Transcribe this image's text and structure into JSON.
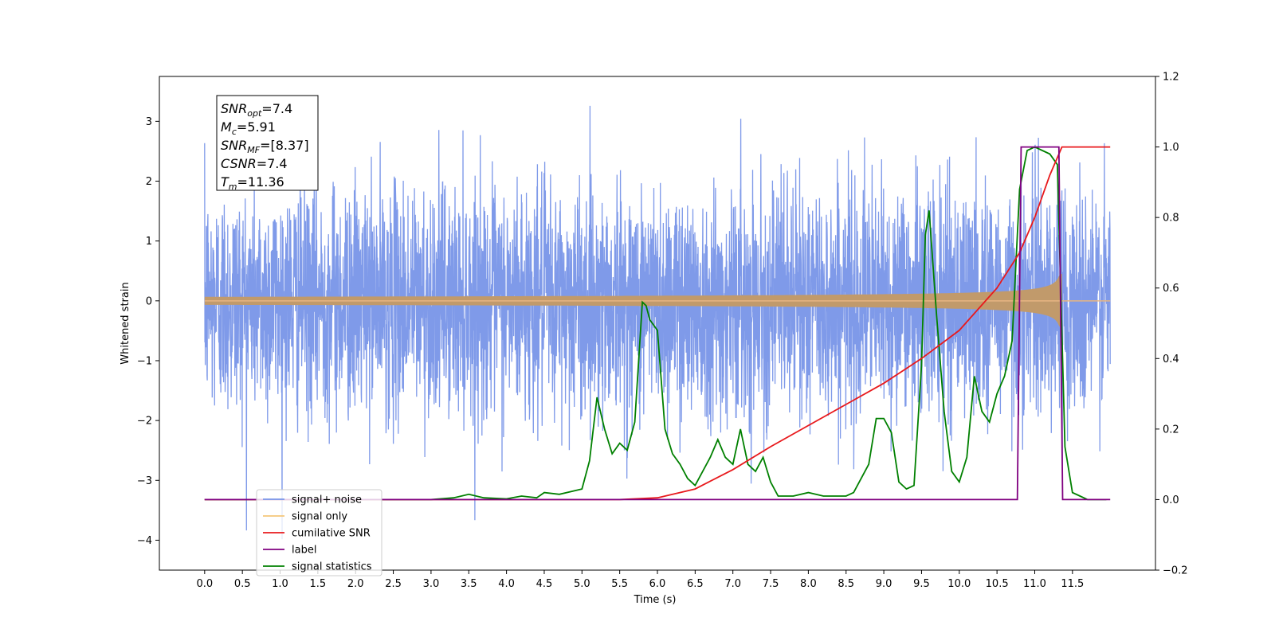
{
  "chart_data": {
    "type": "line",
    "title": "",
    "xlabel": "Time (s)",
    "ylabel": "Whitened strain",
    "xlim": [
      -0.6,
      12.6
    ],
    "ylim": [
      -4.5,
      3.75
    ],
    "y2lim": [
      -0.2,
      1.2
    ],
    "x_ticks": [
      "0.0",
      "0.5",
      "1.0",
      "1.5",
      "2.0",
      "2.5",
      "3.0",
      "3.5",
      "4.0",
      "4.5",
      "5.0",
      "5.5",
      "6.0",
      "6.5",
      "7.0",
      "7.5",
      "8.0",
      "8.5",
      "9.0",
      "9.5",
      "10.0",
      "10.5",
      "11.0",
      "11.5"
    ],
    "y_ticks": [
      "3",
      "2",
      "1",
      "0",
      "−1",
      "−2",
      "−3",
      "−4"
    ],
    "y2_ticks": [
      "1.2",
      "1.0",
      "0.8",
      "0.6",
      "0.4",
      "0.2",
      "0.0",
      "−0.2"
    ],
    "grid": false,
    "legend_position": "lower-left",
    "annotation": [
      {
        "base": "SNR",
        "sub": "opt",
        "value": "=7.4"
      },
      {
        "base": "M",
        "sub": "c",
        "value": "=5.91"
      },
      {
        "base": "SNR",
        "sub": "MF",
        "value": "=[8.37]"
      },
      {
        "base": "CSNR",
        "sub": "",
        "value": "=7.4"
      },
      {
        "base": "T",
        "sub": "m",
        "value": "=11.36"
      }
    ],
    "series": [
      {
        "name": "signal+ noise",
        "color": "#7895e8",
        "axis": "left",
        "kind": "noise",
        "duration": 12.0,
        "std": 0.95
      },
      {
        "name": "signal only",
        "color": "#e6b482",
        "axis": "left",
        "kind": "chirp",
        "merger_time": 11.36,
        "peak_amplitude": 0.45
      },
      {
        "name": "cumilative SNR",
        "color": "#e8191c",
        "axis": "right",
        "x": [
          0.0,
          5.0,
          5.5,
          6.0,
          6.5,
          7.0,
          7.5,
          8.0,
          8.5,
          9.0,
          9.5,
          10.0,
          10.5,
          10.8,
          11.0,
          11.2,
          11.36,
          12.0
        ],
        "values": [
          0.0,
          0.0,
          0.0,
          0.005,
          0.03,
          0.085,
          0.15,
          0.21,
          0.27,
          0.33,
          0.4,
          0.48,
          0.6,
          0.7,
          0.8,
          0.92,
          1.0,
          1.0
        ]
      },
      {
        "name": "label",
        "color": "#800080",
        "axis": "right",
        "x": [
          0.0,
          10.77,
          10.82,
          11.32,
          11.37,
          12.0
        ],
        "values": [
          0.0,
          0.0,
          1.0,
          1.0,
          0.0,
          0.0
        ]
      },
      {
        "name": "signal statistics",
        "color": "#008000",
        "axis": "right",
        "x": [
          0.0,
          3.0,
          3.3,
          3.5,
          3.7,
          4.0,
          4.2,
          4.4,
          4.5,
          4.7,
          4.9,
          5.0,
          5.1,
          5.2,
          5.3,
          5.4,
          5.5,
          5.6,
          5.7,
          5.8,
          5.85,
          5.9,
          6.0,
          6.1,
          6.2,
          6.3,
          6.4,
          6.5,
          6.7,
          6.8,
          6.9,
          7.0,
          7.1,
          7.2,
          7.3,
          7.4,
          7.5,
          7.6,
          7.8,
          8.0,
          8.2,
          8.5,
          8.6,
          8.8,
          8.9,
          9.0,
          9.1,
          9.2,
          9.3,
          9.4,
          9.5,
          9.55,
          9.6,
          9.7,
          9.8,
          9.9,
          10.0,
          10.1,
          10.2,
          10.3,
          10.4,
          10.5,
          10.6,
          10.7,
          10.8,
          10.9,
          11.0,
          11.1,
          11.2,
          11.3,
          11.4,
          11.5,
          11.6,
          11.7,
          11.9,
          11.95
        ],
        "values": [
          0.0,
          0.0,
          0.005,
          0.015,
          0.005,
          0.002,
          0.01,
          0.005,
          0.02,
          0.015,
          0.025,
          0.03,
          0.11,
          0.29,
          0.2,
          0.13,
          0.16,
          0.14,
          0.22,
          0.56,
          0.55,
          0.51,
          0.48,
          0.2,
          0.13,
          0.1,
          0.06,
          0.04,
          0.12,
          0.17,
          0.12,
          0.1,
          0.2,
          0.1,
          0.08,
          0.12,
          0.05,
          0.01,
          0.01,
          0.02,
          0.01,
          0.01,
          0.02,
          0.1,
          0.23,
          0.23,
          0.19,
          0.05,
          0.03,
          0.04,
          0.38,
          0.75,
          0.82,
          0.52,
          0.25,
          0.08,
          0.05,
          0.12,
          0.35,
          0.25,
          0.22,
          0.3,
          0.35,
          0.45,
          0.88,
          0.99,
          1.0,
          0.99,
          0.98,
          0.95,
          0.15,
          0.02,
          0.01,
          0.0,
          0.0,
          0.0
        ]
      }
    ]
  }
}
